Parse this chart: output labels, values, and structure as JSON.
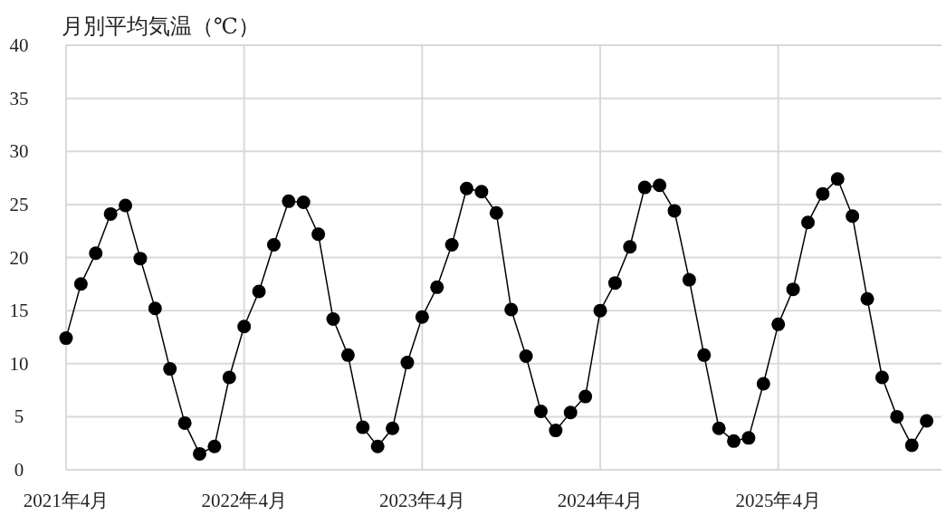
{
  "chart_data": {
    "type": "line",
    "title": "月別平均気温（℃）",
    "x": [
      "2021-04",
      "2021-05",
      "2021-06",
      "2021-07",
      "2021-08",
      "2021-09",
      "2021-10",
      "2021-11",
      "2021-12",
      "2022-01",
      "2022-02",
      "2022-03",
      "2022-04",
      "2022-05",
      "2022-06",
      "2022-07",
      "2022-08",
      "2022-09",
      "2022-10",
      "2022-11",
      "2022-12",
      "2023-01",
      "2023-02",
      "2023-03",
      "2023-04",
      "2023-05",
      "2023-06",
      "2023-07",
      "2023-08",
      "2023-09",
      "2023-10",
      "2023-11",
      "2023-12",
      "2024-01",
      "2024-02",
      "2024-03",
      "2024-04",
      "2024-05",
      "2024-06",
      "2024-07",
      "2024-08",
      "2024-09",
      "2024-10",
      "2024-11",
      "2024-12",
      "2025-01",
      "2025-02",
      "2025-03",
      "2025-04",
      "2025-05",
      "2025-06",
      "2025-07",
      "2025-08",
      "2025-09",
      "2025-10",
      "2025-11",
      "2025-12",
      "2026-01",
      "2026-02"
    ],
    "series": [
      {
        "color": "#000000",
        "values": [
          12.4,
          17.5,
          20.4,
          24.1,
          24.9,
          19.9,
          15.2,
          9.5,
          4.4,
          1.5,
          2.2,
          8.7,
          13.5,
          16.8,
          21.2,
          25.3,
          25.2,
          22.2,
          14.2,
          10.8,
          4.0,
          2.2,
          3.9,
          10.1,
          14.4,
          17.2,
          21.2,
          26.5,
          26.2,
          24.2,
          15.1,
          10.7,
          5.5,
          3.7,
          5.4,
          6.9,
          15.0,
          17.6,
          21.0,
          26.6,
          26.8,
          24.4,
          17.9,
          10.8,
          3.9,
          2.7,
          3.0,
          8.1,
          13.7,
          17.0,
          23.3,
          26.0,
          27.4,
          23.9,
          16.1,
          8.7,
          5.0,
          2.3,
          4.6
        ]
      }
    ],
    "xlim": [
      "2021-04",
      "2026-03"
    ],
    "xticks": [
      {
        "value": "2021-04",
        "label": "2021年4月"
      },
      {
        "value": "2022-04",
        "label": "2022年4月"
      },
      {
        "value": "2023-04",
        "label": "2023年4月"
      },
      {
        "value": "2024-04",
        "label": "2024年4月"
      },
      {
        "value": "2025-04",
        "label": "2025年4月"
      }
    ],
    "ylim": [
      0,
      40
    ],
    "yticks": [
      0,
      5,
      10,
      15,
      20,
      25,
      30,
      35,
      40
    ],
    "grid": true,
    "marker": "circle"
  }
}
